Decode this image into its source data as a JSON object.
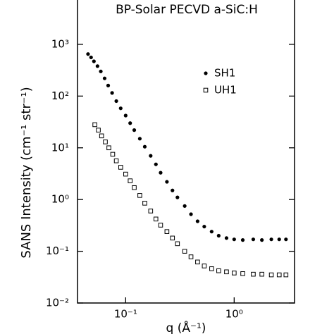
{
  "chart_data": {
    "type": "scatter",
    "title": "BP-Solar PECVD a-SiC:H",
    "ylabel": "SANS Intensity (cm⁻¹ str⁻¹)",
    "xlabel": "q (Å⁻¹)",
    "xlog": true,
    "ylog": true,
    "xlim": [
      0.036,
      3.6
    ],
    "ylim": [
      0.01,
      7200
    ],
    "xticks": [
      {
        "value": 0.1,
        "label": "10⁻¹"
      },
      {
        "value": 1,
        "label": "10⁰"
      }
    ],
    "yticks": [
      {
        "value": 0.01,
        "label": "10⁻²"
      },
      {
        "value": 0.1,
        "label": "10⁻¹"
      },
      {
        "value": 1,
        "label": "10⁰"
      },
      {
        "value": 10,
        "label": "10¹"
      },
      {
        "value": 100,
        "label": "10²"
      },
      {
        "value": 1000,
        "label": "10³"
      }
    ],
    "series": [
      {
        "name": "SH1",
        "color": "#000000",
        "marker": "filled-circle",
        "x": [
          0.045,
          0.048,
          0.051,
          0.055,
          0.059,
          0.064,
          0.069,
          0.075,
          0.082,
          0.09,
          0.1,
          0.11,
          0.12,
          0.135,
          0.15,
          0.17,
          0.19,
          0.21,
          0.24,
          0.27,
          0.3,
          0.35,
          0.4,
          0.46,
          0.53,
          0.62,
          0.72,
          0.85,
          1.0,
          1.2,
          1.5,
          1.8,
          2.2,
          2.6,
          3.0
        ],
        "values": [
          650,
          560,
          470,
          380,
          300,
          220,
          160,
          115,
          80,
          58,
          42,
          30,
          22,
          15,
          10.5,
          7,
          4.8,
          3.3,
          2.2,
          1.5,
          1.1,
          0.75,
          0.52,
          0.38,
          0.3,
          0.24,
          0.2,
          0.18,
          0.17,
          0.165,
          0.17,
          0.165,
          0.17,
          0.17,
          0.17
        ]
      },
      {
        "name": "UH1",
        "color": "#000000",
        "marker": "open-square",
        "x": [
          0.052,
          0.056,
          0.06,
          0.065,
          0.07,
          0.076,
          0.082,
          0.09,
          0.1,
          0.11,
          0.12,
          0.135,
          0.15,
          0.17,
          0.19,
          0.21,
          0.24,
          0.27,
          0.3,
          0.35,
          0.4,
          0.46,
          0.53,
          0.62,
          0.72,
          0.85,
          1.0,
          1.2,
          1.5,
          1.8,
          2.2,
          2.6,
          3.0
        ],
        "values": [
          28,
          22,
          17,
          13,
          10,
          7.5,
          5.6,
          4.2,
          3.1,
          2.3,
          1.7,
          1.2,
          0.85,
          0.6,
          0.42,
          0.32,
          0.24,
          0.18,
          0.14,
          0.1,
          0.078,
          0.062,
          0.052,
          0.046,
          0.042,
          0.04,
          0.038,
          0.037,
          0.036,
          0.036,
          0.035,
          0.035,
          0.035
        ]
      }
    ]
  }
}
